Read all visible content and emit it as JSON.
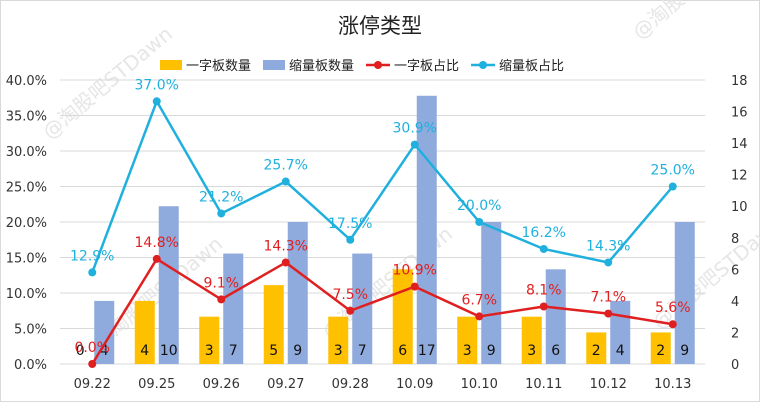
{
  "chart_data": {
    "type": "bar+line",
    "title": "涨停类型",
    "categories": [
      "09.22",
      "09.25",
      "09.26",
      "09.27",
      "09.28",
      "10.09",
      "10.10",
      "10.11",
      "10.12",
      "10.13"
    ],
    "series": [
      {
        "name": "一字板数量",
        "type": "bar",
        "axis": "right",
        "color": "#FFC000",
        "values": [
          0,
          4,
          3,
          5,
          3,
          6,
          3,
          3,
          2,
          2
        ]
      },
      {
        "name": "缩量板数量",
        "type": "bar",
        "axis": "right",
        "color": "#8FAADC",
        "values": [
          4,
          10,
          7,
          9,
          7,
          17,
          9,
          6,
          4,
          9
        ]
      },
      {
        "name": "一字板占比",
        "type": "line",
        "axis": "left",
        "color": "#E02020",
        "values": [
          0.0,
          14.8,
          9.1,
          14.3,
          7.5,
          10.9,
          6.7,
          8.1,
          7.1,
          5.6
        ],
        "labels": [
          "0.0%",
          "14.8%",
          "9.1%",
          "14.3%",
          "7.5%",
          "10.9%",
          "6.7%",
          "8.1%",
          "7.1%",
          "5.6%"
        ]
      },
      {
        "name": "缩量板占比",
        "type": "line",
        "axis": "left",
        "color": "#1FB0DE",
        "values": [
          12.9,
          37.0,
          21.2,
          25.7,
          17.5,
          30.9,
          20.0,
          16.2,
          14.3,
          25.0
        ],
        "labels": [
          "12.9%",
          "37.0%",
          "21.2%",
          "25.7%",
          "17.5%",
          "30.9%",
          "20.0%",
          "16.2%",
          "14.3%",
          "25.0%"
        ]
      }
    ],
    "left_axis": {
      "min": 0,
      "max": 40,
      "step": 5,
      "ticks": [
        "0.0%",
        "5.0%",
        "10.0%",
        "15.0%",
        "20.0%",
        "25.0%",
        "30.0%",
        "35.0%",
        "40.0%"
      ]
    },
    "right_axis": {
      "min": 0,
      "max": 18,
      "step": 2,
      "ticks": [
        "0",
        "2",
        "4",
        "6",
        "8",
        "10",
        "12",
        "14",
        "16",
        "18"
      ]
    },
    "grid": true,
    "legend_position": "top",
    "watermark": "@淘股吧STDawn"
  }
}
